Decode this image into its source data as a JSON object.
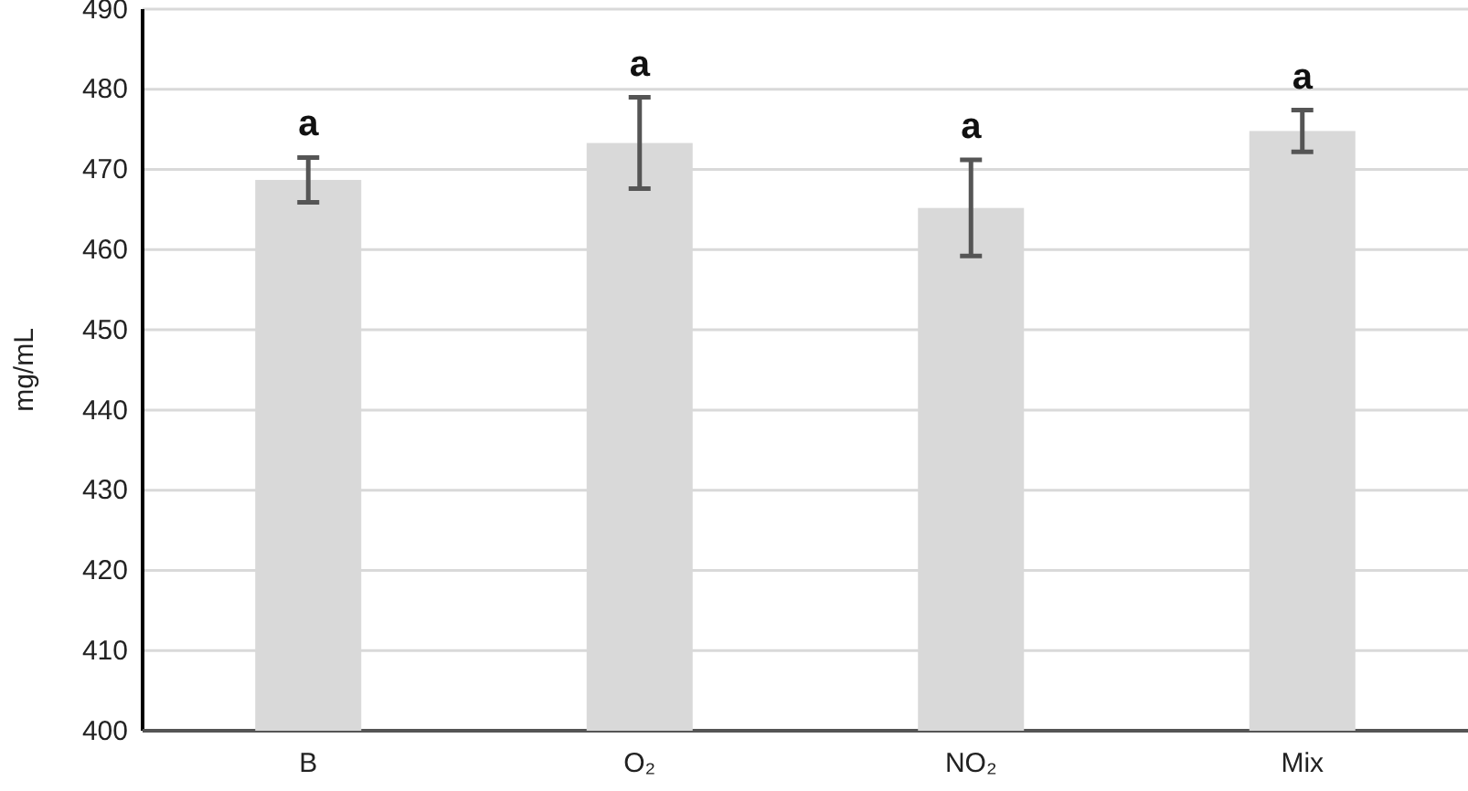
{
  "chart_data": {
    "type": "bar",
    "ylabel": "mg/mL",
    "categories": [
      "B",
      "O₂",
      "NO₂",
      "Mix"
    ],
    "values": [
      468.7,
      473.3,
      465.2,
      474.8
    ],
    "errors": [
      2.8,
      5.7,
      6,
      2.6
    ],
    "color": "#d9d9d9",
    "ylim": [
      400,
      490
    ],
    "yticks": [
      400,
      410,
      420,
      430,
      440,
      450,
      460,
      470,
      480,
      490
    ],
    "grid": "y",
    "annotations": [
      "a",
      "a",
      "a",
      "a"
    ]
  }
}
